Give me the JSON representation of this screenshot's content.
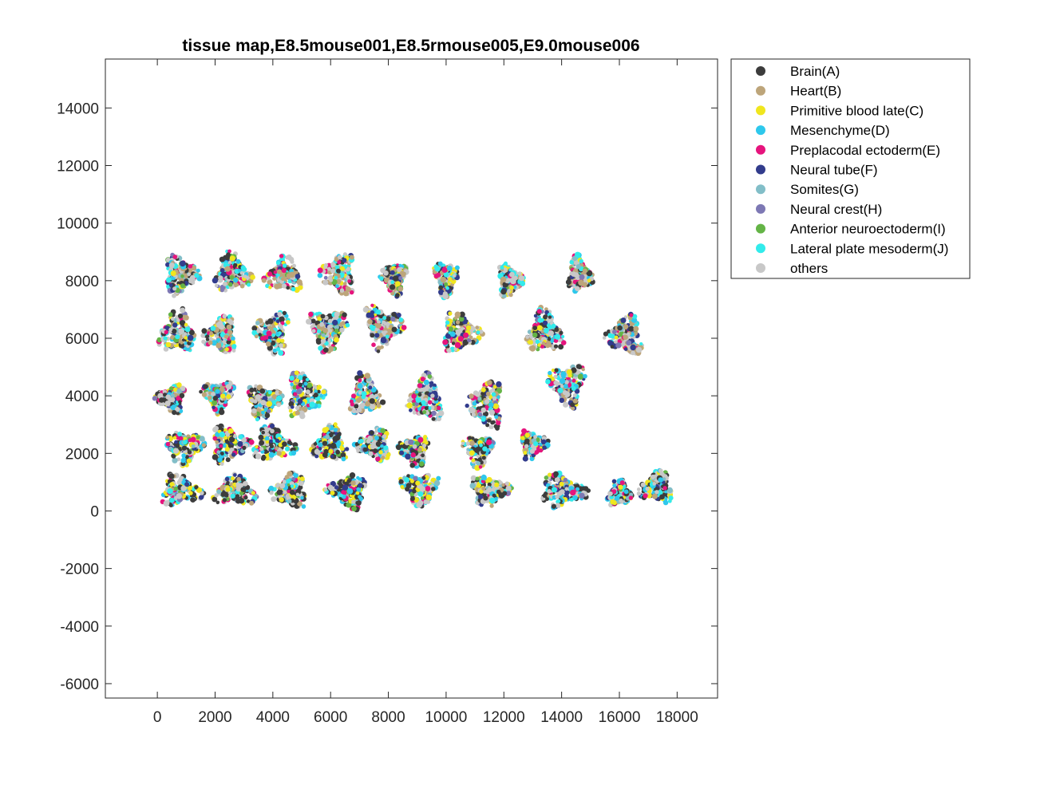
{
  "chart_data": {
    "type": "scatter",
    "title": "tissue map,E8.5mouse001,E8.5rmouse005,E9.0mouse006",
    "xlabel": "",
    "ylabel": "",
    "xlim": [
      -1800,
      19400
    ],
    "ylim": [
      -6500,
      15700
    ],
    "xticks": [
      0,
      2000,
      4000,
      6000,
      8000,
      10000,
      12000,
      14000,
      16000,
      18000
    ],
    "yticks": [
      -6000,
      -4000,
      -2000,
      0,
      2000,
      4000,
      6000,
      8000,
      10000,
      12000,
      14000
    ],
    "grid": false,
    "legend_position": "outside-top-right",
    "series": [
      {
        "name": "Brain(A)",
        "color": "#3c3c3c"
      },
      {
        "name": "Heart(B)",
        "color": "#bda57a"
      },
      {
        "name": "Primitive blood late(C)",
        "color": "#f0e61e"
      },
      {
        "name": "Mesenchyme(D)",
        "color": "#2ec8ec"
      },
      {
        "name": "Preplacodal ectoderm(E)",
        "color": "#e6147d"
      },
      {
        "name": "Neural tube(F)",
        "color": "#323c8c"
      },
      {
        "name": "Somites(G)",
        "color": "#82bec8"
      },
      {
        "name": "Neural crest(H)",
        "color": "#7d78b4"
      },
      {
        "name": "Anterior neuroectoderm(I)",
        "color": "#64b446"
      },
      {
        "name": "Lateral plate mesoderm(J)",
        "color": "#32ebeb"
      },
      {
        "name": "others",
        "color": "#c8c8c8"
      }
    ],
    "sections": [
      {
        "row": 5,
        "x": 800,
        "y": 8200,
        "w": 1400,
        "h": 1600
      },
      {
        "row": 5,
        "x": 2600,
        "y": 8250,
        "w": 1500,
        "h": 1600
      },
      {
        "row": 5,
        "x": 4400,
        "y": 8200,
        "w": 1500,
        "h": 1500
      },
      {
        "row": 5,
        "x": 6300,
        "y": 8250,
        "w": 1400,
        "h": 1700
      },
      {
        "row": 5,
        "x": 8200,
        "y": 8100,
        "w": 1100,
        "h": 1400
      },
      {
        "row": 5,
        "x": 10000,
        "y": 8100,
        "w": 1000,
        "h": 1400
      },
      {
        "row": 5,
        "x": 12200,
        "y": 8000,
        "w": 1000,
        "h": 1400
      },
      {
        "row": 5,
        "x": 14600,
        "y": 8200,
        "w": 1000,
        "h": 1500
      },
      {
        "row": 4,
        "x": 700,
        "y": 6200,
        "w": 1500,
        "h": 1800
      },
      {
        "row": 4,
        "x": 2200,
        "y": 6100,
        "w": 1400,
        "h": 1500
      },
      {
        "row": 4,
        "x": 4000,
        "y": 6200,
        "w": 1400,
        "h": 1700
      },
      {
        "row": 4,
        "x": 5900,
        "y": 6300,
        "w": 1600,
        "h": 1800
      },
      {
        "row": 4,
        "x": 7800,
        "y": 6400,
        "w": 1600,
        "h": 1800
      },
      {
        "row": 4,
        "x": 10500,
        "y": 6200,
        "w": 1600,
        "h": 1600
      },
      {
        "row": 4,
        "x": 13400,
        "y": 6200,
        "w": 1500,
        "h": 1800
      },
      {
        "row": 4,
        "x": 16200,
        "y": 6100,
        "w": 1500,
        "h": 1600
      },
      {
        "row": 3,
        "x": 500,
        "y": 3900,
        "w": 1200,
        "h": 1100
      },
      {
        "row": 3,
        "x": 2100,
        "y": 4000,
        "w": 1300,
        "h": 1300
      },
      {
        "row": 3,
        "x": 3700,
        "y": 3800,
        "w": 1400,
        "h": 1400
      },
      {
        "row": 3,
        "x": 5100,
        "y": 4000,
        "w": 1500,
        "h": 1800
      },
      {
        "row": 3,
        "x": 7200,
        "y": 4000,
        "w": 1300,
        "h": 1700
      },
      {
        "row": 3,
        "x": 9300,
        "y": 3900,
        "w": 1400,
        "h": 1900
      },
      {
        "row": 3,
        "x": 11400,
        "y": 3700,
        "w": 1400,
        "h": 2000
      },
      {
        "row": 3,
        "x": 14200,
        "y": 4400,
        "w": 1500,
        "h": 1800
      },
      {
        "row": 2,
        "x": 900,
        "y": 2200,
        "w": 1600,
        "h": 1500
      },
      {
        "row": 2,
        "x": 2500,
        "y": 2300,
        "w": 1600,
        "h": 1500
      },
      {
        "row": 2,
        "x": 4000,
        "y": 2300,
        "w": 1700,
        "h": 1400
      },
      {
        "row": 2,
        "x": 6000,
        "y": 2300,
        "w": 1400,
        "h": 1500
      },
      {
        "row": 2,
        "x": 7500,
        "y": 2300,
        "w": 1400,
        "h": 1300
      },
      {
        "row": 2,
        "x": 8900,
        "y": 2100,
        "w": 1200,
        "h": 1300
      },
      {
        "row": 2,
        "x": 11100,
        "y": 2100,
        "w": 1200,
        "h": 1300
      },
      {
        "row": 2,
        "x": 13000,
        "y": 2300,
        "w": 1100,
        "h": 1200
      },
      {
        "row": 1,
        "x": 800,
        "y": 700,
        "w": 1700,
        "h": 1300
      },
      {
        "row": 1,
        "x": 2700,
        "y": 700,
        "w": 1700,
        "h": 1400
      },
      {
        "row": 1,
        "x": 4600,
        "y": 700,
        "w": 1500,
        "h": 1400
      },
      {
        "row": 1,
        "x": 6600,
        "y": 700,
        "w": 1700,
        "h": 1400
      },
      {
        "row": 1,
        "x": 9100,
        "y": 800,
        "w": 1600,
        "h": 1300
      },
      {
        "row": 1,
        "x": 11500,
        "y": 700,
        "w": 1600,
        "h": 1300
      },
      {
        "row": 1,
        "x": 14000,
        "y": 700,
        "w": 1900,
        "h": 1400
      },
      {
        "row": 1,
        "x": 16000,
        "y": 600,
        "w": 1000,
        "h": 1100
      },
      {
        "row": 1,
        "x": 17300,
        "y": 800,
        "w": 1400,
        "h": 1300
      }
    ]
  }
}
